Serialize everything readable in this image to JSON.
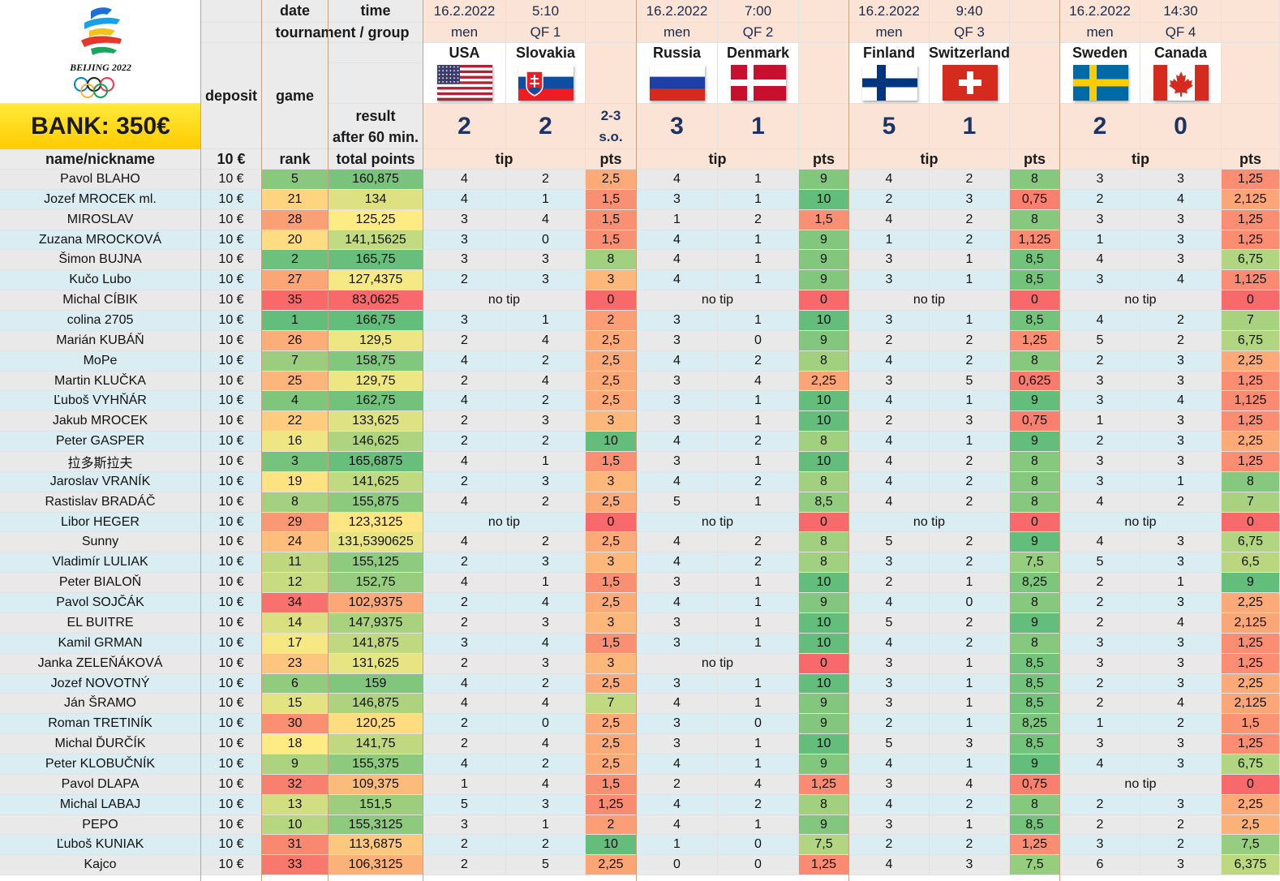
{
  "header": {
    "date_label": "date",
    "time_label": "time",
    "tournament_label": "tournament / group",
    "deposit_label": "deposit",
    "game_label": "game",
    "result_label_1": "result",
    "result_label_2": "after 60 min.",
    "logo_text": "BEIJING 2022",
    "bank": "BANK: 350€",
    "name_col": "name/nickname",
    "deposit_col": "10 €",
    "rank_col": "rank",
    "points_col": "total points",
    "tip_label": "tip",
    "pts_label": "pts"
  },
  "colors": {
    "header_bg": "#fbe4d6",
    "row_alt_1": "#e9e9e9",
    "row_alt_2": "#d9edf2",
    "result_text": "#1c3365",
    "good": "#63be7b",
    "mid": "#ffeb84",
    "bad": "#f8696b"
  },
  "games": [
    {
      "date": "16.2.2022",
      "time": "5:10",
      "tournament": "men",
      "group": "QF 1",
      "team1": "USA",
      "team2": "Slovakia",
      "flag1": "usa-flag",
      "flag2": "slovakia-flag",
      "score1": "2",
      "score2": "2",
      "extra_1": "2-3",
      "extra_2": "s.o."
    },
    {
      "date": "16.2.2022",
      "time": "7:00",
      "tournament": "men",
      "group": "QF 2",
      "team1": "Russia",
      "team2": "Denmark",
      "flag1": "russia-flag",
      "flag2": "denmark-flag",
      "score1": "3",
      "score2": "1",
      "extra_1": "",
      "extra_2": ""
    },
    {
      "date": "16.2.2022",
      "time": "9:40",
      "tournament": "men",
      "group": "QF 3",
      "team1": "Finland",
      "team2": "Switzerland",
      "flag1": "finland-flag",
      "flag2": "switzerland-flag",
      "score1": "5",
      "score2": "1",
      "extra_1": "",
      "extra_2": ""
    },
    {
      "date": "16.2.2022",
      "time": "14:30",
      "tournament": "men",
      "group": "QF 4",
      "team1": "Sweden",
      "team2": "Canada",
      "flag1": "sweden-flag",
      "flag2": "canada-flag",
      "score1": "2",
      "score2": "0",
      "extra_1": "",
      "extra_2": ""
    }
  ],
  "no_tip_text": "no tip",
  "players": [
    {
      "name": "Pavol BLAHO",
      "deposit": "10 €",
      "rank": "5",
      "total": "160,875",
      "games": [
        [
          "4",
          "2",
          "2,5"
        ],
        [
          "4",
          "1",
          "9"
        ],
        [
          "4",
          "2",
          "8"
        ],
        [
          "3",
          "3",
          "1,25"
        ]
      ]
    },
    {
      "name": "Jozef MROCEK ml.",
      "deposit": "10 €",
      "rank": "21",
      "total": "134",
      "games": [
        [
          "4",
          "1",
          "1,5"
        ],
        [
          "3",
          "1",
          "10"
        ],
        [
          "2",
          "3",
          "0,75"
        ],
        [
          "2",
          "4",
          "2,125"
        ]
      ]
    },
    {
      "name": "MIROSLAV",
      "deposit": "10 €",
      "rank": "28",
      "total": "125,25",
      "games": [
        [
          "3",
          "4",
          "1,5"
        ],
        [
          "1",
          "2",
          "1,5"
        ],
        [
          "4",
          "2",
          "8"
        ],
        [
          "3",
          "3",
          "1,25"
        ]
      ]
    },
    {
      "name": "Zuzana MROCKOVÁ",
      "deposit": "10 €",
      "rank": "20",
      "total": "141,15625",
      "games": [
        [
          "3",
          "0",
          "1,5"
        ],
        [
          "4",
          "1",
          "9"
        ],
        [
          "1",
          "2",
          "1,125"
        ],
        [
          "1",
          "3",
          "1,25"
        ]
      ]
    },
    {
      "name": "Šimon BUJNA",
      "deposit": "10 €",
      "rank": "2",
      "total": "165,75",
      "games": [
        [
          "3",
          "3",
          "8"
        ],
        [
          "4",
          "1",
          "9"
        ],
        [
          "3",
          "1",
          "8,5"
        ],
        [
          "4",
          "3",
          "6,75"
        ]
      ]
    },
    {
      "name": "Kučo Lubo",
      "deposit": "10 €",
      "rank": "27",
      "total": "127,4375",
      "games": [
        [
          "2",
          "3",
          "3"
        ],
        [
          "4",
          "1",
          "9"
        ],
        [
          "3",
          "1",
          "8,5"
        ],
        [
          "3",
          "4",
          "1,125"
        ]
      ]
    },
    {
      "name": "Michal CÍBIK",
      "deposit": "10 €",
      "rank": "35",
      "total": "83,0625",
      "games": [
        [
          "",
          "",
          "0"
        ],
        [
          "",
          "",
          "0"
        ],
        [
          "",
          "",
          "0"
        ],
        [
          "",
          "",
          "0"
        ]
      ],
      "notip": [
        true,
        true,
        true,
        true
      ]
    },
    {
      "name": "colina 2705",
      "deposit": "10 €",
      "rank": "1",
      "total": "166,75",
      "games": [
        [
          "3",
          "1",
          "2"
        ],
        [
          "3",
          "1",
          "10"
        ],
        [
          "3",
          "1",
          "8,5"
        ],
        [
          "4",
          "2",
          "7"
        ]
      ]
    },
    {
      "name": "Marián KUBÁŇ",
      "deposit": "10 €",
      "rank": "26",
      "total": "129,5",
      "games": [
        [
          "2",
          "4",
          "2,5"
        ],
        [
          "3",
          "0",
          "9"
        ],
        [
          "2",
          "2",
          "1,25"
        ],
        [
          "5",
          "2",
          "6,75"
        ]
      ]
    },
    {
      "name": "MoPe",
      "deposit": "10 €",
      "rank": "7",
      "total": "158,75",
      "games": [
        [
          "4",
          "2",
          "2,5"
        ],
        [
          "4",
          "2",
          "8"
        ],
        [
          "4",
          "2",
          "8"
        ],
        [
          "2",
          "3",
          "2,25"
        ]
      ]
    },
    {
      "name": "Martin KLUČKA",
      "deposit": "10 €",
      "rank": "25",
      "total": "129,75",
      "games": [
        [
          "2",
          "4",
          "2,5"
        ],
        [
          "3",
          "4",
          "2,25"
        ],
        [
          "3",
          "5",
          "0,625"
        ],
        [
          "3",
          "3",
          "1,25"
        ]
      ]
    },
    {
      "name": "Ľuboš VYHŇÁR",
      "deposit": "10 €",
      "rank": "4",
      "total": "162,75",
      "games": [
        [
          "4",
          "2",
          "2,5"
        ],
        [
          "3",
          "1",
          "10"
        ],
        [
          "4",
          "1",
          "9"
        ],
        [
          "3",
          "4",
          "1,125"
        ]
      ]
    },
    {
      "name": "Jakub MROCEK",
      "deposit": "10 €",
      "rank": "22",
      "total": "133,625",
      "games": [
        [
          "2",
          "3",
          "3"
        ],
        [
          "3",
          "1",
          "10"
        ],
        [
          "2",
          "3",
          "0,75"
        ],
        [
          "1",
          "3",
          "1,25"
        ]
      ]
    },
    {
      "name": "Peter GASPER",
      "deposit": "10 €",
      "rank": "16",
      "total": "146,625",
      "games": [
        [
          "2",
          "2",
          "10"
        ],
        [
          "4",
          "2",
          "8"
        ],
        [
          "4",
          "1",
          "9"
        ],
        [
          "2",
          "3",
          "2,25"
        ]
      ]
    },
    {
      "name": "拉多斯拉夫",
      "deposit": "10 €",
      "rank": "3",
      "total": "165,6875",
      "games": [
        [
          "4",
          "1",
          "1,5"
        ],
        [
          "3",
          "1",
          "10"
        ],
        [
          "4",
          "2",
          "8"
        ],
        [
          "3",
          "3",
          "1,25"
        ]
      ]
    },
    {
      "name": "Jaroslav VRANÍK",
      "deposit": "10 €",
      "rank": "19",
      "total": "141,625",
      "games": [
        [
          "2",
          "3",
          "3"
        ],
        [
          "4",
          "2",
          "8"
        ],
        [
          "4",
          "2",
          "8"
        ],
        [
          "3",
          "1",
          "8"
        ]
      ]
    },
    {
      "name": "Rastislav BRADÁČ",
      "deposit": "10 €",
      "rank": "8",
      "total": "155,875",
      "games": [
        [
          "4",
          "2",
          "2,5"
        ],
        [
          "5",
          "1",
          "8,5"
        ],
        [
          "4",
          "2",
          "8"
        ],
        [
          "4",
          "2",
          "7"
        ]
      ]
    },
    {
      "name": "Libor HEGER",
      "deposit": "10 €",
      "rank": "29",
      "total": "123,3125",
      "games": [
        [
          "",
          "",
          "0"
        ],
        [
          "",
          "",
          "0"
        ],
        [
          "",
          "",
          "0"
        ],
        [
          "",
          "",
          "0"
        ]
      ],
      "notip": [
        true,
        true,
        true,
        true
      ]
    },
    {
      "name": "Sunny",
      "deposit": "10 €",
      "rank": "24",
      "total": "131,5390625",
      "games": [
        [
          "4",
          "2",
          "2,5"
        ],
        [
          "4",
          "2",
          "8"
        ],
        [
          "5",
          "2",
          "9"
        ],
        [
          "4",
          "3",
          "6,75"
        ]
      ]
    },
    {
      "name": "Vladimír LULIAK",
      "deposit": "10 €",
      "rank": "11",
      "total": "155,125",
      "games": [
        [
          "2",
          "3",
          "3"
        ],
        [
          "4",
          "2",
          "8"
        ],
        [
          "3",
          "2",
          "7,5"
        ],
        [
          "5",
          "3",
          "6,5"
        ]
      ]
    },
    {
      "name": "Peter BIALOŇ",
      "deposit": "10 €",
      "rank": "12",
      "total": "152,75",
      "games": [
        [
          "4",
          "1",
          "1,5"
        ],
        [
          "3",
          "1",
          "10"
        ],
        [
          "2",
          "1",
          "8,25"
        ],
        [
          "2",
          "1",
          "9"
        ]
      ]
    },
    {
      "name": "Pavol SOJČÁK",
      "deposit": "10 €",
      "rank": "34",
      "total": "102,9375",
      "games": [
        [
          "2",
          "4",
          "2,5"
        ],
        [
          "4",
          "1",
          "9"
        ],
        [
          "4",
          "0",
          "8"
        ],
        [
          "2",
          "3",
          "2,25"
        ]
      ]
    },
    {
      "name": "EL BUITRE",
      "deposit": "10 €",
      "rank": "14",
      "total": "147,9375",
      "games": [
        [
          "2",
          "3",
          "3"
        ],
        [
          "3",
          "1",
          "10"
        ],
        [
          "5",
          "2",
          "9"
        ],
        [
          "2",
          "4",
          "2,125"
        ]
      ]
    },
    {
      "name": "Kamil GRMAN",
      "deposit": "10 €",
      "rank": "17",
      "total": "141,875",
      "games": [
        [
          "3",
          "4",
          "1,5"
        ],
        [
          "3",
          "1",
          "10"
        ],
        [
          "4",
          "2",
          "8"
        ],
        [
          "3",
          "3",
          "1,25"
        ]
      ]
    },
    {
      "name": "Janka ZELEŇÁKOVÁ",
      "deposit": "10 €",
      "rank": "23",
      "total": "131,625",
      "games": [
        [
          "2",
          "3",
          "3"
        ],
        [
          "",
          "",
          "0"
        ],
        [
          "3",
          "1",
          "8,5"
        ],
        [
          "3",
          "3",
          "1,25"
        ]
      ],
      "notip": [
        false,
        true,
        false,
        false
      ]
    },
    {
      "name": "Jozef NOVOTNÝ",
      "deposit": "10 €",
      "rank": "6",
      "total": "159",
      "games": [
        [
          "4",
          "2",
          "2,5"
        ],
        [
          "3",
          "1",
          "10"
        ],
        [
          "3",
          "1",
          "8,5"
        ],
        [
          "2",
          "3",
          "2,25"
        ]
      ]
    },
    {
      "name": "Ján ŠRAMO",
      "deposit": "10 €",
      "rank": "15",
      "total": "146,875",
      "games": [
        [
          "4",
          "4",
          "7"
        ],
        [
          "4",
          "1",
          "9"
        ],
        [
          "3",
          "1",
          "8,5"
        ],
        [
          "2",
          "4",
          "2,125"
        ]
      ]
    },
    {
      "name": "Roman TRETINÍK",
      "deposit": "10 €",
      "rank": "30",
      "total": "120,25",
      "games": [
        [
          "2",
          "0",
          "2,5"
        ],
        [
          "3",
          "0",
          "9"
        ],
        [
          "2",
          "1",
          "8,25"
        ],
        [
          "1",
          "2",
          "1,5"
        ]
      ]
    },
    {
      "name": "Michal ĎURČÍK",
      "deposit": "10 €",
      "rank": "18",
      "total": "141,75",
      "games": [
        [
          "2",
          "4",
          "2,5"
        ],
        [
          "3",
          "1",
          "10"
        ],
        [
          "5",
          "3",
          "8,5"
        ],
        [
          "3",
          "3",
          "1,25"
        ]
      ]
    },
    {
      "name": "Peter KLOBUČNÍK",
      "deposit": "10 €",
      "rank": "9",
      "total": "155,375",
      "games": [
        [
          "4",
          "2",
          "2,5"
        ],
        [
          "4",
          "1",
          "9"
        ],
        [
          "4",
          "1",
          "9"
        ],
        [
          "4",
          "3",
          "6,75"
        ]
      ]
    },
    {
      "name": "Pavol DLAPA",
      "deposit": "10 €",
      "rank": "32",
      "total": "109,375",
      "games": [
        [
          "1",
          "4",
          "1,5"
        ],
        [
          "2",
          "4",
          "1,25"
        ],
        [
          "3",
          "4",
          "0,75"
        ],
        [
          "",
          "",
          "0"
        ]
      ],
      "notip": [
        false,
        false,
        false,
        true
      ]
    },
    {
      "name": "Michal LABAJ",
      "deposit": "10 €",
      "rank": "13",
      "total": "151,5",
      "games": [
        [
          "5",
          "3",
          "1,25"
        ],
        [
          "4",
          "2",
          "8"
        ],
        [
          "4",
          "2",
          "8"
        ],
        [
          "2",
          "3",
          "2,25"
        ]
      ]
    },
    {
      "name": "PEPO",
      "deposit": "10 €",
      "rank": "10",
      "total": "155,3125",
      "games": [
        [
          "3",
          "1",
          "2"
        ],
        [
          "4",
          "1",
          "9"
        ],
        [
          "3",
          "1",
          "8,5"
        ],
        [
          "2",
          "2",
          "2,5"
        ]
      ]
    },
    {
      "name": "Ľuboš KUNIAK",
      "deposit": "10 €",
      "rank": "31",
      "total": "113,6875",
      "games": [
        [
          "2",
          "2",
          "10"
        ],
        [
          "1",
          "0",
          "7,5"
        ],
        [
          "2",
          "2",
          "1,25"
        ],
        [
          "3",
          "2",
          "7,5"
        ]
      ]
    },
    {
      "name": "Kajco",
      "deposit": "10 €",
      "rank": "33",
      "total": "106,3125",
      "games": [
        [
          "2",
          "5",
          "2,25"
        ],
        [
          "0",
          "0",
          "1,25"
        ],
        [
          "4",
          "3",
          "7,5"
        ],
        [
          "6",
          "3",
          "6,375"
        ]
      ]
    }
  ]
}
